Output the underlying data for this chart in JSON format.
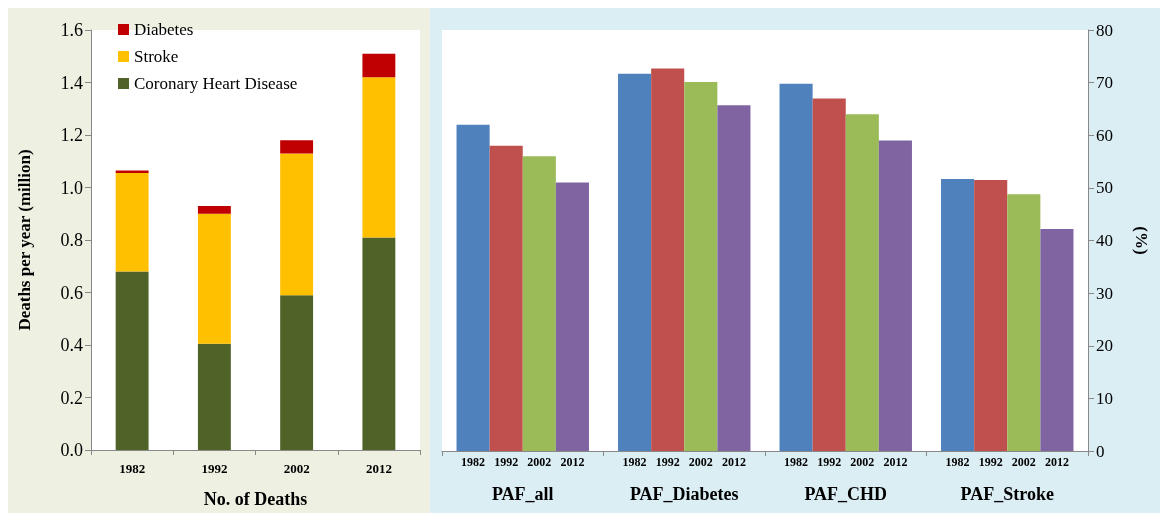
{
  "chart_data": [
    {
      "type": "bar",
      "stacked": true,
      "xlabel": "No. of Deaths",
      "ylabel": "Deaths per year (million)",
      "categories": [
        "1982",
        "1992",
        "2002",
        "2012"
      ],
      "series": [
        {
          "name": "Coronary Heart Disease",
          "color": "#4f6228",
          "values": [
            0.68,
            0.405,
            0.59,
            0.81
          ]
        },
        {
          "name": "Stroke",
          "color": "#ffc000",
          "values": [
            0.375,
            0.495,
            0.54,
            0.61
          ]
        },
        {
          "name": "Diabetes",
          "color": "#c00000",
          "values": [
            0.01,
            0.03,
            0.05,
            0.09
          ]
        }
      ],
      "ylim": [
        0,
        1.6
      ],
      "yticks": [
        {
          "value": 0,
          "label": "0.0"
        },
        {
          "value": 0.2,
          "label": "0.2"
        },
        {
          "value": 0.4,
          "label": "0.4"
        },
        {
          "value": 0.6,
          "label": "0.6"
        },
        {
          "value": 0.8,
          "label": "0.8"
        },
        {
          "value": 1,
          "label": "1.0"
        },
        {
          "value": 1.2,
          "label": "1.2"
        },
        {
          "value": 1.4,
          "label": "1.4"
        },
        {
          "value": 1.6,
          "label": "1.6"
        }
      ],
      "grid": false,
      "legend": "top left"
    },
    {
      "type": "bar",
      "ylabel": "(%)",
      "categories": [
        "PAF_all",
        "PAF_Diabetes",
        "PAF_CHD",
        "PAF_Stroke"
      ],
      "series": [
        {
          "name": "1982",
          "color": "#4f81bd",
          "values": [
            62,
            71.7,
            69.8,
            51.7
          ]
        },
        {
          "name": "1992",
          "color": "#c0504d",
          "values": [
            58,
            72.7,
            67,
            51.5
          ]
        },
        {
          "name": "2002",
          "color": "#9bbb59",
          "values": [
            56,
            70.1,
            64,
            48.8
          ]
        },
        {
          "name": "2012",
          "color": "#8064a2",
          "values": [
            51,
            65.7,
            59,
            42.2
          ]
        }
      ],
      "ylim": [
        0,
        80
      ],
      "yticks": [
        0,
        10,
        20,
        30,
        40,
        50,
        60,
        70,
        80
      ],
      "grid": false,
      "legend": false
    }
  ]
}
